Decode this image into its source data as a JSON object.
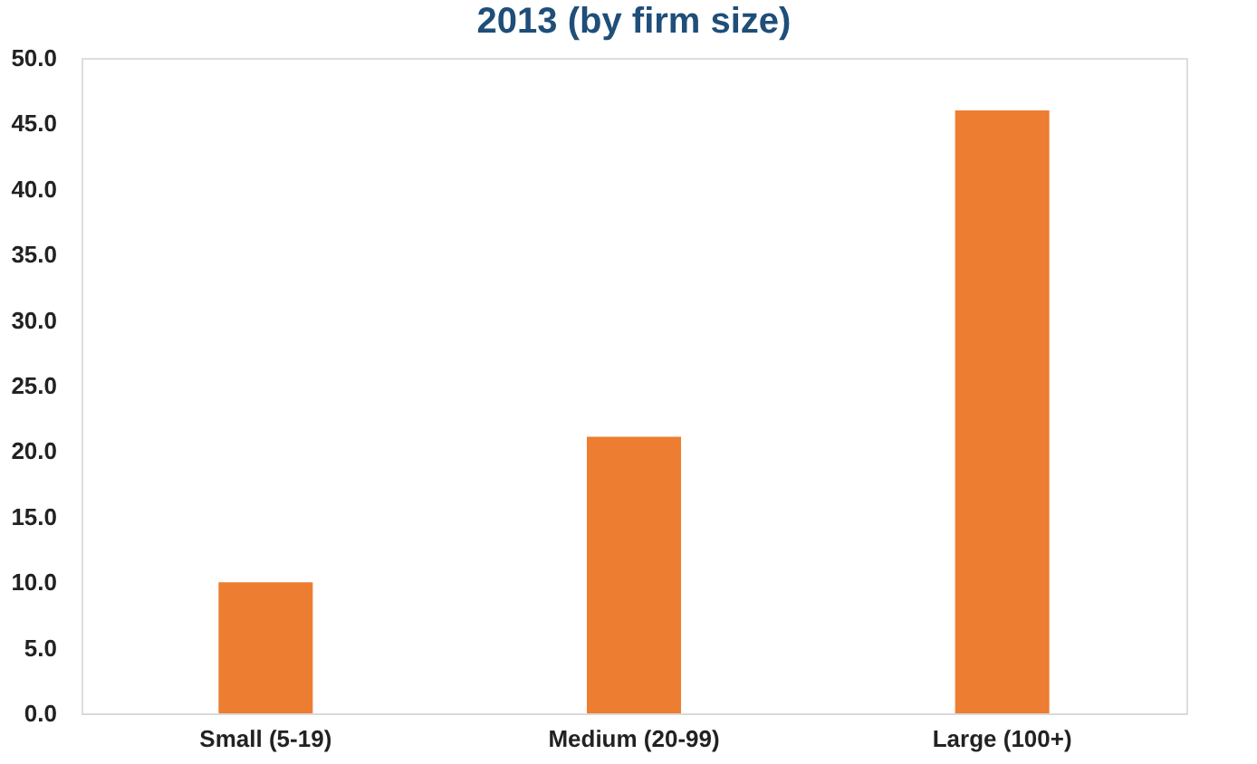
{
  "chart_data": {
    "type": "bar",
    "title": "2013 (by firm size)",
    "categories": [
      "Small (5-19)",
      "Medium (20-99)",
      "Large (100+)"
    ],
    "values": [
      10.0,
      21.1,
      46.0
    ],
    "color": "#ed7d31",
    "ylim": [
      0,
      50
    ],
    "yticks": [
      {
        "value": 0,
        "label": "0.0"
      },
      {
        "value": 5,
        "label": "5.0"
      },
      {
        "value": 10,
        "label": "10.0"
      },
      {
        "value": 15,
        "label": "15.0"
      },
      {
        "value": 20,
        "label": "20.0"
      },
      {
        "value": 25,
        "label": "25.0"
      },
      {
        "value": 30,
        "label": "30.0"
      },
      {
        "value": 35,
        "label": "35.0"
      },
      {
        "value": 40,
        "label": "40.0"
      },
      {
        "value": 45,
        "label": "45.0"
      },
      {
        "value": 50,
        "label": "50.0"
      }
    ],
    "grid": false
  }
}
